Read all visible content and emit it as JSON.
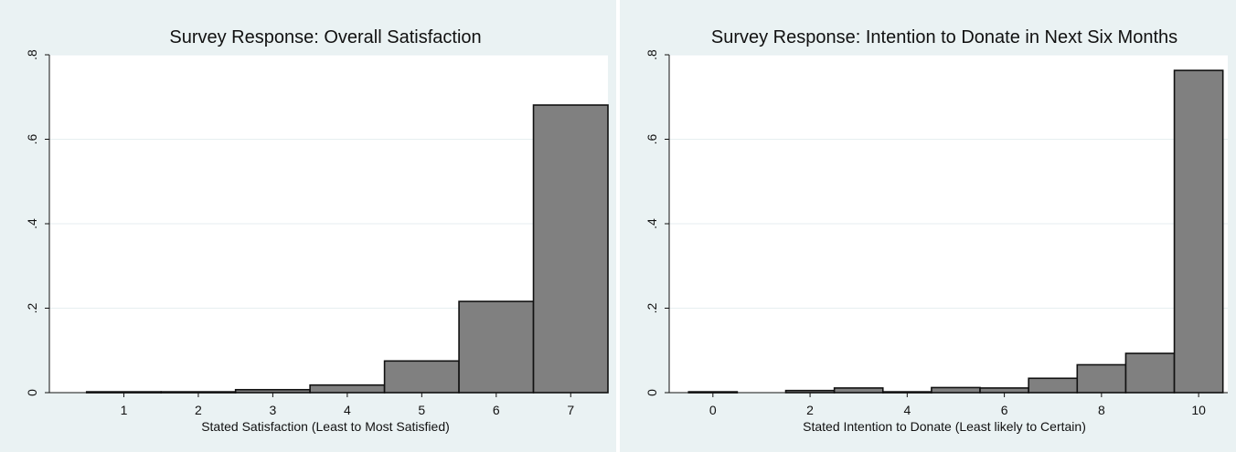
{
  "chart_data": [
    {
      "type": "bar",
      "title": "Survey Response: Overall Satisfaction",
      "xlabel": "Stated Satisfaction (Least to Most Satisfied)",
      "ylabel": "",
      "x": [
        1,
        2,
        3,
        4,
        5,
        6,
        7
      ],
      "values": [
        0.002,
        0.002,
        0.007,
        0.018,
        0.075,
        0.216,
        0.681
      ],
      "xticks": [
        "1",
        "2",
        "3",
        "4",
        "5",
        "6",
        "7"
      ],
      "yticks": [
        "0",
        ".2",
        ".4",
        ".6",
        ".8"
      ],
      "xlim": [
        0.0,
        7.5
      ],
      "ylim": [
        0,
        0.8
      ],
      "grid": true,
      "bar_color": "#808080"
    },
    {
      "type": "bar",
      "title": "Survey Response: Intention to Donate in Next Six Months",
      "xlabel": "Stated Intention to Donate (Least likely to Certain)",
      "ylabel": "",
      "x": [
        0,
        2,
        3,
        4,
        5,
        6,
        7,
        8,
        9,
        10
      ],
      "values": [
        0.002,
        0.005,
        0.011,
        0.002,
        0.012,
        0.011,
        0.034,
        0.066,
        0.093,
        0.763
      ],
      "xticks": [
        "0",
        "2",
        "4",
        "6",
        "8",
        "10"
      ],
      "yticks": [
        "0",
        ".2",
        ".4",
        ".6",
        ".8"
      ],
      "xlim": [
        -0.9,
        10.6
      ],
      "ylim": [
        0,
        0.8
      ],
      "grid": true,
      "bar_color": "#808080"
    }
  ]
}
